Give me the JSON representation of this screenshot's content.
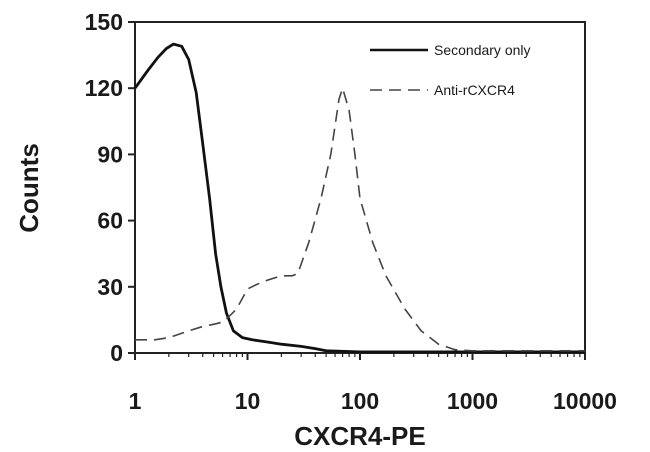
{
  "chart_data": {
    "type": "line",
    "xlabel": "CXCR4-PE",
    "ylabel": "Counts",
    "xscale": "log",
    "xlim": [
      1,
      10000
    ],
    "ylim": [
      0,
      150
    ],
    "xticks": [
      "1",
      "10",
      "100",
      "1000",
      "10000"
    ],
    "yticks": [
      "0",
      "30",
      "60",
      "90",
      "120",
      "150"
    ],
    "grid": false,
    "legend_position": "top-right",
    "colors": {
      "solid": "#111111",
      "dashed": "#444444"
    },
    "series": [
      {
        "name": "Secondary only",
        "style": "solid",
        "x": [
          1,
          1.3,
          1.6,
          1.9,
          2.2,
          2.6,
          3.0,
          3.5,
          4.0,
          4.6,
          5.2,
          5.8,
          6.5,
          7.5,
          9,
          11,
          15,
          20,
          30,
          40,
          50,
          100,
          1000,
          10000
        ],
        "y": [
          120,
          128,
          134,
          138,
          140,
          139,
          133,
          118,
          95,
          70,
          45,
          30,
          18,
          10,
          7,
          6,
          5,
          4,
          3,
          2,
          1,
          0.5,
          0.5,
          0.5
        ]
      },
      {
        "name": "Anti-rCXCR4",
        "style": "dashed",
        "x": [
          1,
          1.5,
          2,
          3,
          4,
          5,
          6,
          7,
          8,
          10,
          12,
          15,
          20,
          25,
          28,
          35,
          45,
          55,
          65,
          70,
          80,
          90,
          100,
          130,
          170,
          250,
          350,
          500,
          700,
          1000,
          10000
        ],
        "y": [
          6,
          6,
          7,
          10,
          12,
          13,
          14,
          17,
          20,
          29,
          31,
          33,
          35,
          35,
          36,
          50,
          70,
          90,
          115,
          120,
          110,
          90,
          70,
          50,
          35,
          20,
          10,
          4,
          1.5,
          1,
          1
        ]
      }
    ]
  }
}
